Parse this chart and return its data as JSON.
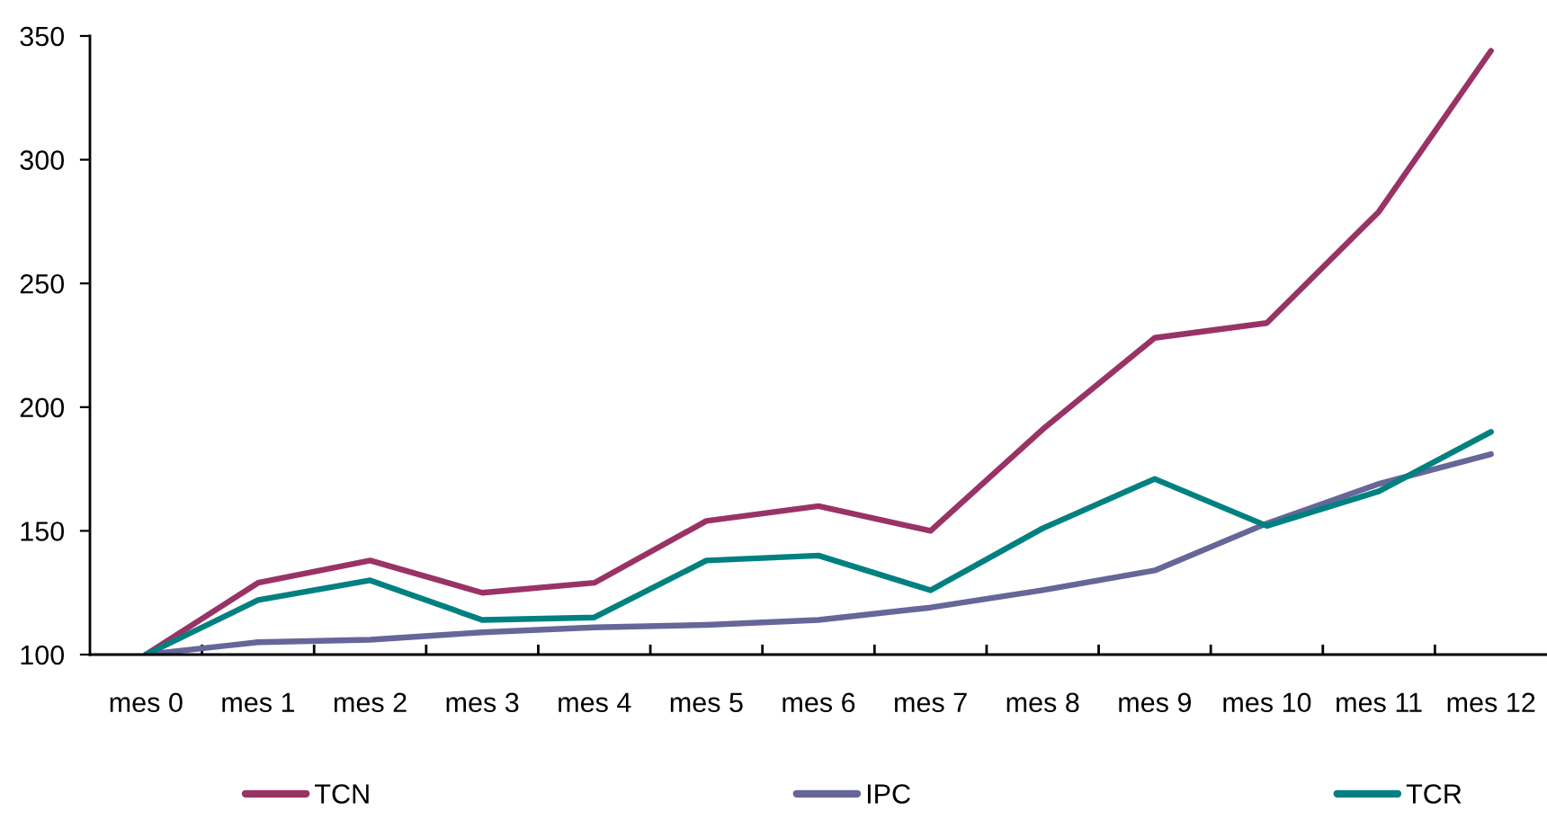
{
  "chart_data": {
    "type": "line",
    "categories": [
      "mes 0",
      "mes 1",
      "mes 2",
      "mes 3",
      "mes 4",
      "mes 5",
      "mes 6",
      "mes 7",
      "mes 8",
      "mes 9",
      "mes 10",
      "mes 11",
      "mes 12"
    ],
    "series": [
      {
        "name": "TCN",
        "color": "#993366",
        "values": [
          100,
          129,
          138,
          125,
          129,
          154,
          160,
          150,
          191,
          228,
          234,
          279,
          344
        ]
      },
      {
        "name": "IPC",
        "color": "#666699",
        "values": [
          100,
          105,
          106,
          109,
          111,
          112,
          114,
          119,
          126,
          134,
          153,
          169,
          181
        ]
      },
      {
        "name": "TCR",
        "color": "#008080",
        "values": [
          100,
          122,
          130,
          114,
          115,
          138,
          140,
          126,
          151,
          171,
          152,
          166,
          190
        ]
      }
    ],
    "ylim": [
      100,
      350
    ],
    "yticks": [
      100,
      150,
      200,
      250,
      300,
      350
    ],
    "grid": false,
    "legend": "bottom",
    "marker": "none",
    "line_style": "solid"
  }
}
